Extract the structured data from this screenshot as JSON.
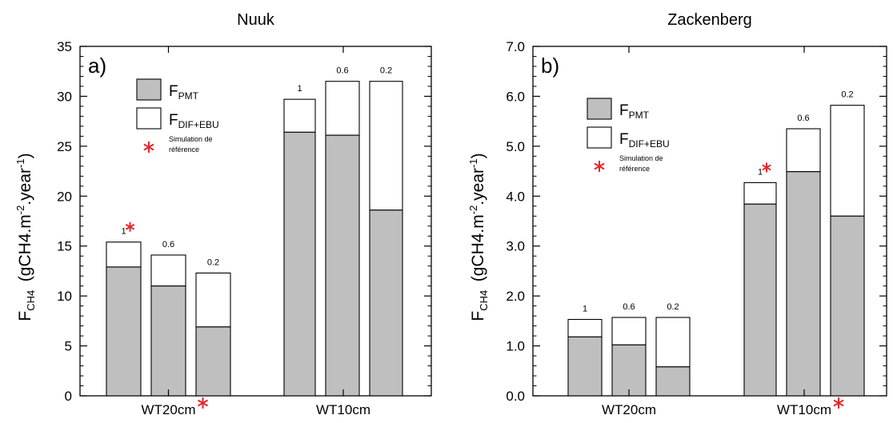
{
  "colors": {
    "pmt_fill": "#bfbfbf",
    "difebu_fill": "#ffffff",
    "stroke": "#000000",
    "reference_marker": "#e8262b"
  },
  "chart_data": [
    {
      "type": "bar",
      "stacked": true,
      "title": "Nuuk",
      "panel_label": "a)",
      "ylabel": {
        "main": "F",
        "sub": "CH4",
        "unit_prefix": "(gCH4.m",
        "sup1": "-2",
        "unit_mid": ".year",
        "sup2": "-1",
        "unit_suffix": ")"
      },
      "ylim": [
        0,
        35
      ],
      "yticks": [
        0,
        5,
        10,
        15,
        20,
        25,
        30,
        35
      ],
      "ytick_labels": [
        "0",
        "5",
        "10",
        "15",
        "20",
        "25",
        "30",
        "35"
      ],
      "groups": [
        {
          "label": "WT20cm",
          "reference": true
        },
        {
          "label": "WT10cm",
          "reference": false
        }
      ],
      "bars": [
        {
          "group": 0,
          "label": "1",
          "pmt": 12.9,
          "difebu": 2.5,
          "reference": true
        },
        {
          "group": 0,
          "label": "0.6",
          "pmt": 11.0,
          "difebu": 3.1,
          "reference": false
        },
        {
          "group": 0,
          "label": "0.2",
          "pmt": 6.9,
          "difebu": 5.4,
          "reference": false
        },
        {
          "group": 1,
          "label": "1",
          "pmt": 26.4,
          "difebu": 3.3,
          "reference": false
        },
        {
          "group": 1,
          "label": "0.6",
          "pmt": 26.1,
          "difebu": 5.4,
          "reference": false
        },
        {
          "group": 1,
          "label": "0.2",
          "pmt": 18.6,
          "difebu": 12.9,
          "reference": false
        }
      ],
      "legend": {
        "placement": "upper-left",
        "pmt": {
          "main": "F",
          "sub": "PMT"
        },
        "difebu": {
          "main": "F",
          "sub": "DIF+EBU"
        },
        "reference": {
          "line1": "Simulation de",
          "line2": "référence"
        }
      }
    },
    {
      "type": "bar",
      "stacked": true,
      "title": "Zackenberg",
      "panel_label": "b)",
      "ylabel": {
        "main": "F",
        "sub": "CH4",
        "unit_prefix": "(gCH4.m",
        "sup1": "-2",
        "unit_mid": ".year",
        "sup2": "-1",
        "unit_suffix": ")"
      },
      "ylim": [
        0,
        7
      ],
      "yticks": [
        0,
        1,
        2,
        3,
        4,
        5,
        6,
        7
      ],
      "ytick_labels": [
        "0.0",
        "1.0",
        "2.0",
        "3.0",
        "4.0",
        "5.0",
        "6.0",
        "7.0"
      ],
      "groups": [
        {
          "label": "WT20cm",
          "reference": false
        },
        {
          "label": "WT10cm",
          "reference": true
        }
      ],
      "bars": [
        {
          "group": 0,
          "label": "1",
          "pmt": 1.18,
          "difebu": 0.35,
          "reference": false
        },
        {
          "group": 0,
          "label": "0.6",
          "pmt": 1.02,
          "difebu": 0.55,
          "reference": false
        },
        {
          "group": 0,
          "label": "0.2",
          "pmt": 0.58,
          "difebu": 0.99,
          "reference": false
        },
        {
          "group": 1,
          "label": "1",
          "pmt": 3.84,
          "difebu": 0.43,
          "reference": true
        },
        {
          "group": 1,
          "label": "0.6",
          "pmt": 4.49,
          "difebu": 0.86,
          "reference": false
        },
        {
          "group": 1,
          "label": "0.2",
          "pmt": 3.6,
          "difebu": 2.22,
          "reference": false
        }
      ],
      "legend": {
        "placement": "upper-left",
        "pmt": {
          "main": "F",
          "sub": "PMT"
        },
        "difebu": {
          "main": "F",
          "sub": "DIF+EBU"
        },
        "reference": {
          "line1": "Simulation de",
          "line2": "référence"
        }
      }
    }
  ]
}
